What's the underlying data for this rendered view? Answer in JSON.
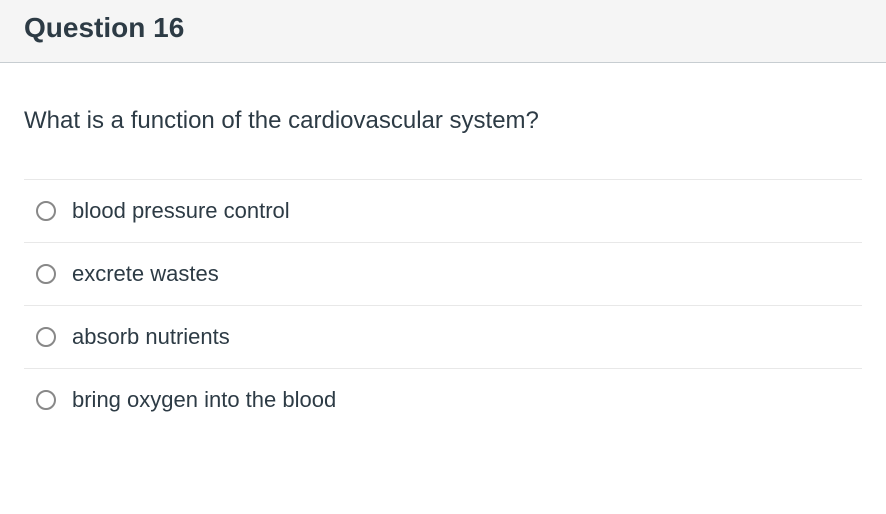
{
  "header": {
    "title": "Question 16"
  },
  "question": {
    "text": "What is a function of the cardiovascular system?"
  },
  "options": [
    {
      "label": "blood pressure control"
    },
    {
      "label": "excrete wastes"
    },
    {
      "label": "absorb nutrients"
    },
    {
      "label": "bring oxygen into the blood"
    }
  ],
  "styling": {
    "header_bg": "#f5f5f5",
    "header_border": "#c7cdd1",
    "text_color": "#2d3b45",
    "divider_color": "#e8e8e8",
    "radio_border": "#888888",
    "title_fontsize": 28,
    "question_fontsize": 24,
    "option_fontsize": 22
  }
}
